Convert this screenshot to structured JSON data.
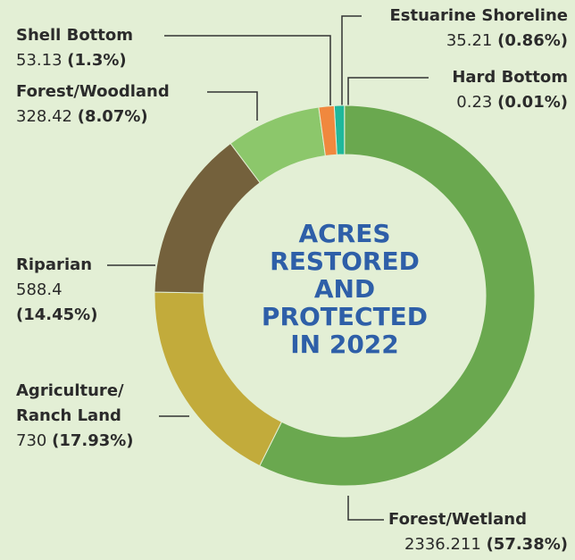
{
  "chart_data": {
    "type": "pie",
    "title": [
      "ACRES",
      "RESTORED",
      "AND",
      "PROTECTED",
      "IN 2022"
    ],
    "categories": [
      "Estuarine Shoreline",
      "Hard Bottom",
      "Forest/Wetland",
      "Agriculture/ Ranch Land",
      "Riparian",
      "Forest/Woodland",
      "Shell Bottom"
    ],
    "values": [
      35.21,
      0.23,
      2336.211,
      730,
      588.4,
      328.42,
      53.13
    ],
    "percents": [
      0.86,
      0.01,
      57.38,
      17.93,
      14.45,
      8.07,
      1.3
    ],
    "percent_labels": [
      "(0.86%)",
      "(0.01%)",
      "(57.38%)",
      "(17.93%)",
      "(14.45%)",
      "(8.07%)",
      "(1.3%)"
    ],
    "colors": [
      "#1fb89c",
      "#2f8f5a",
      "#6aa84f",
      "#c2ab3b",
      "#74613c",
      "#8cc76b",
      "#f0883e"
    ]
  }
}
